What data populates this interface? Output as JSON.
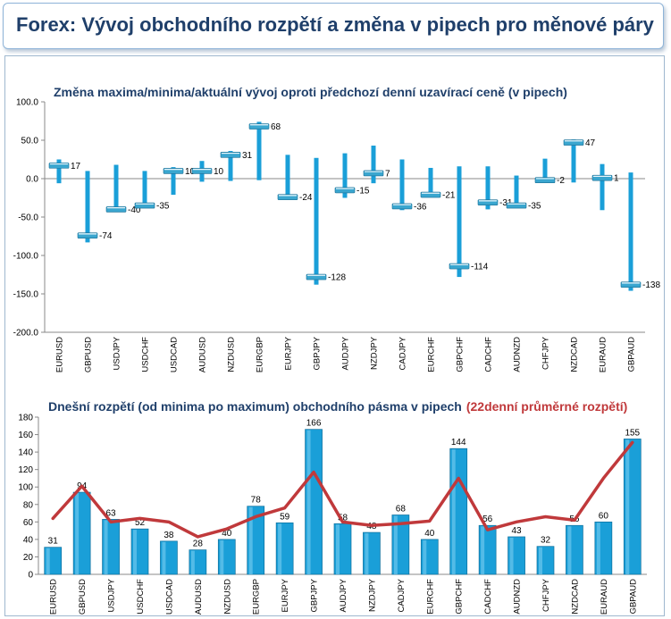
{
  "header": {
    "title": "Forex: Vývoj obchodního rozpětí a změna v pipech pro měnové páry"
  },
  "chart_data": [
    {
      "type": "bar",
      "title": "Změna maxima/minima/aktuální vývoj oproti předchozí denní uzavírací ceně (v pipech)",
      "categories": [
        "EURUSD",
        "GBPUSD",
        "USDJPY",
        "USDCHF",
        "USDCAD",
        "AUDUSD",
        "NZDUSD",
        "EURGBP",
        "EURJPY",
        "GBPJPY",
        "AUDJPY",
        "NZDJPY",
        "CADJPY",
        "EURCHF",
        "GBPCHF",
        "CADCHF",
        "AUDNZD",
        "CHFJPY",
        "NZDCAD",
        "EURAUD",
        "GBPAUD"
      ],
      "series": [
        {
          "name": "max",
          "values": [
            25,
            10,
            18,
            10,
            15,
            23,
            36,
            74,
            31,
            27,
            33,
            43,
            25,
            14,
            16,
            16,
            4,
            26,
            51,
            19,
            8
          ]
        },
        {
          "name": "min",
          "values": [
            -6,
            -83,
            -40,
            -38,
            -21,
            -4,
            -3,
            -2,
            -27,
            -138,
            -25,
            -6,
            -41,
            -24,
            -128,
            -40,
            -37,
            -5,
            -5,
            -41,
            -146
          ]
        },
        {
          "name": "current",
          "values": [
            17,
            -74,
            -40,
            -35,
            10,
            10,
            31,
            68,
            -24,
            -128,
            -15,
            7,
            -36,
            -21,
            -114,
            -31,
            -35,
            -2,
            47,
            1,
            -138
          ]
        }
      ],
      "value_labels": [
        "17",
        "-74",
        "-40",
        "-35",
        "10",
        "10",
        "31",
        "68",
        "-24",
        "-128",
        "-15",
        "7",
        "-36",
        "-21",
        "-114",
        "-31",
        "-35",
        "-2",
        "47",
        "1",
        "-138"
      ],
      "y_ticks": [
        "100.0",
        "50.0",
        "0.0",
        "-50.0",
        "-100.0",
        "-150.0",
        "-200.0"
      ],
      "ylim": [
        -200,
        100
      ],
      "colors": {
        "range": "#1a9fd8",
        "marker": "#3aa6cf"
      }
    },
    {
      "type": "bar",
      "title": "Dnešní rozpětí (od minima po maximum) obchodního pásma v pipech",
      "title_suffix": "(22denní průměrné rozpětí)",
      "categories": [
        "EURUSD",
        "GBPUSD",
        "USDJPY",
        "USDCHF",
        "USDCAD",
        "AUDUSD",
        "NZDUSD",
        "EURGBP",
        "EURJPY",
        "GBPJPY",
        "AUDJPY",
        "NZDJPY",
        "CADJPY",
        "EURCHF",
        "GBPCHF",
        "CADCHF",
        "AUDNZD",
        "CHFJPY",
        "NZDCAD",
        "EURAUD",
        "GBPAUD"
      ],
      "series": [
        {
          "name": "Dnešní rozpětí",
          "values": [
            31,
            94,
            63,
            52,
            38,
            28,
            40,
            78,
            59,
            166,
            58,
            48,
            68,
            40,
            144,
            56,
            43,
            32,
            56,
            60,
            155
          ]
        },
        {
          "name": "22denní průměrné rozpětí",
          "values": [
            64,
            101,
            60,
            64,
            60,
            43,
            52,
            66,
            76,
            117,
            60,
            56,
            58,
            61,
            110,
            51,
            60,
            66,
            62,
            110,
            151
          ]
        }
      ],
      "y_ticks": [
        "180",
        "160",
        "140",
        "120",
        "100",
        "80",
        "60",
        "40",
        "20",
        "0"
      ],
      "ylim": [
        0,
        180
      ],
      "colors": {
        "bar": "#1a9fd8",
        "line": "#c0393b"
      }
    }
  ]
}
